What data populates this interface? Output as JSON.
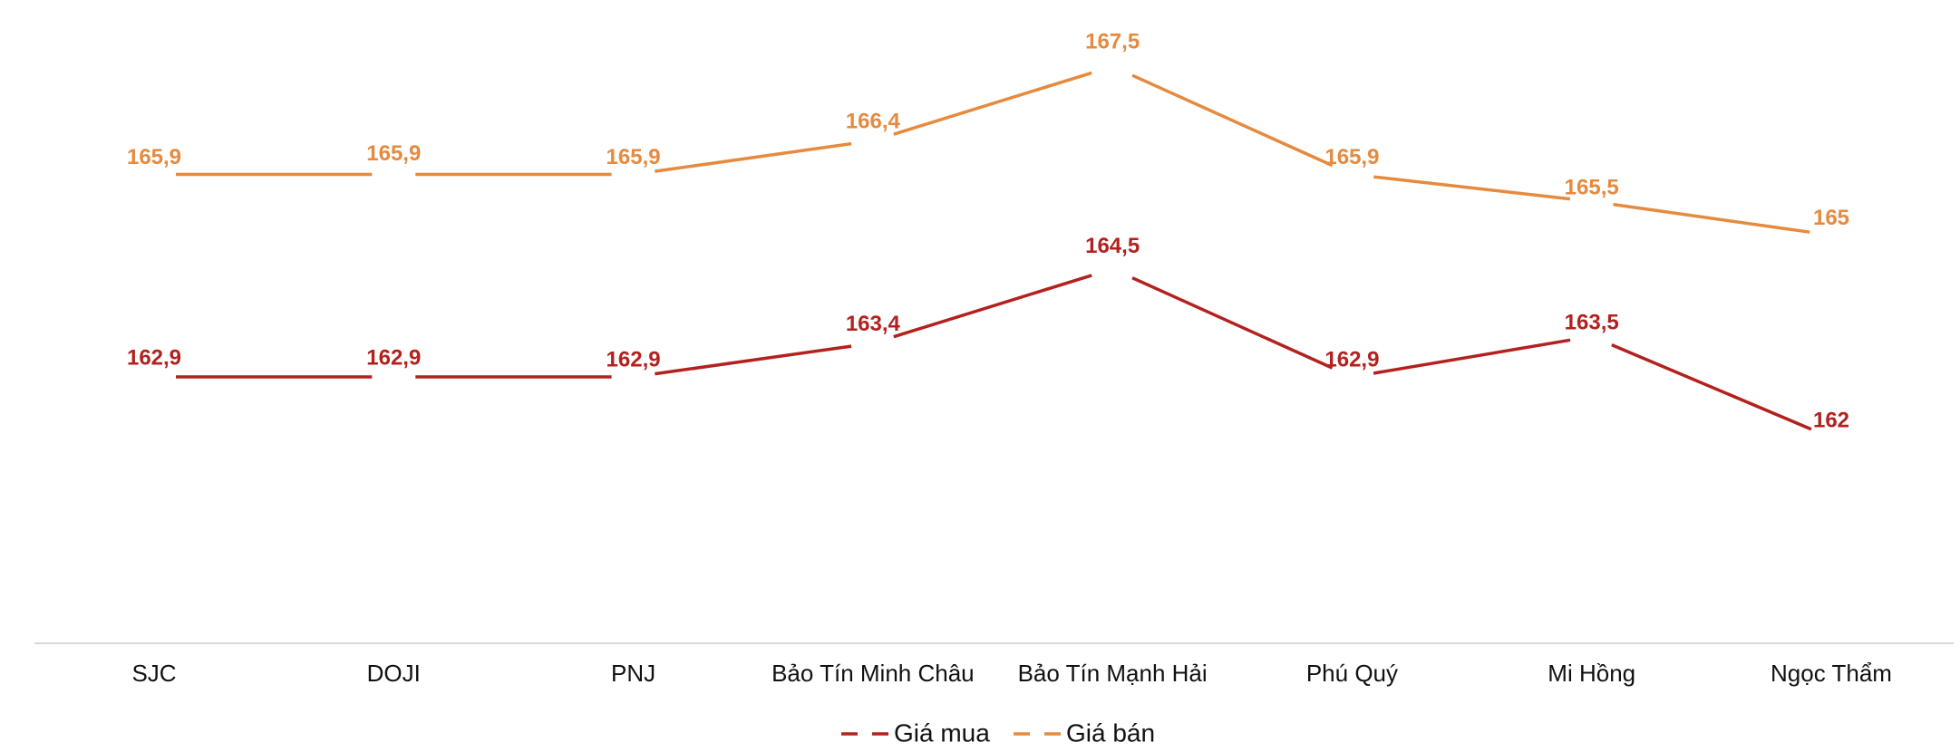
{
  "chart_data": {
    "type": "line",
    "categories": [
      "SJC",
      "DOJI",
      "PNJ",
      "Bảo Tín Minh Châu",
      "Bảo Tín Mạnh Hải",
      "Phú Quý",
      "Mi Hồng",
      "Ngọc Thẩm"
    ],
    "series": [
      {
        "name": "Giá mua",
        "color": "#b3211e",
        "values": [
          162.9,
          162.9,
          162.9,
          163.4,
          164.5,
          162.9,
          163.5,
          162
        ],
        "labels": [
          "162,9",
          "162,9",
          "162,9",
          "163,4",
          "164,5",
          "162,9",
          "163,5",
          "162"
        ]
      },
      {
        "name": "Giá bán",
        "color": "#e58a3e",
        "values": [
          165.9,
          165.9,
          165.9,
          166.4,
          167.5,
          165.9,
          165.5,
          165
        ],
        "labels": [
          "165,9",
          "165,9",
          "165,9",
          "166,4",
          "167,5",
          "165,9",
          "165,5",
          "165"
        ]
      }
    ],
    "title": "",
    "xlabel": "",
    "ylabel": "",
    "ylim": [
      160,
      168
    ],
    "grid": false,
    "legend_position": "bottom"
  }
}
